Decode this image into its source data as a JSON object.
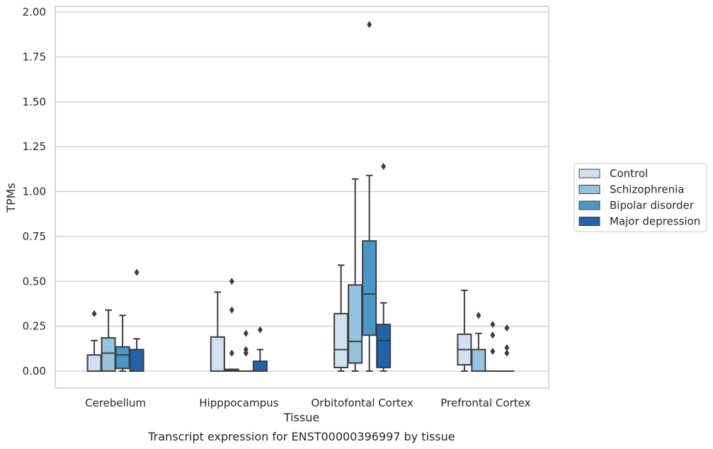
{
  "chart_data": {
    "type": "box",
    "xlabel": "Tissue",
    "ylabel": "TPMs",
    "caption": "Transcript expression for ENST00000396997 by tissue",
    "ylim": [
      -0.095,
      2.03
    ],
    "yticks": [
      "0.00",
      "0.25",
      "0.50",
      "0.75",
      "1.00",
      "1.25",
      "1.50",
      "1.75",
      "2.00"
    ],
    "grid": "horizontal",
    "legend_position": "right",
    "categories": [
      "Cerebellum",
      "Hipppocampus",
      "Orbitofontal Cortex",
      "Prefrontal Cortex"
    ],
    "series": [
      {
        "name": "Control",
        "color": "#d0e1f2",
        "boxes": [
          {
            "whisker_low": 0.0,
            "q1": 0.0,
            "median": 0.0,
            "q3": 0.09,
            "whisker_high": 0.17,
            "outliers": [
              0.32
            ]
          },
          {
            "whisker_low": 0.0,
            "q1": 0.0,
            "median": 0.0,
            "q3": 0.19,
            "whisker_high": 0.44,
            "outliers": []
          },
          {
            "whisker_low": 0.0,
            "q1": 0.02,
            "median": 0.12,
            "q3": 0.32,
            "whisker_high": 0.59,
            "outliers": []
          },
          {
            "whisker_low": 0.0,
            "q1": 0.035,
            "median": 0.12,
            "q3": 0.205,
            "whisker_high": 0.45,
            "outliers": []
          }
        ]
      },
      {
        "name": "Schizophrenia",
        "color": "#94c4df",
        "boxes": [
          {
            "whisker_low": 0.0,
            "q1": 0.0,
            "median": 0.1,
            "q3": 0.185,
            "whisker_high": 0.34,
            "outliers": []
          },
          {
            "whisker_low": 0.0,
            "q1": 0.0,
            "median": 0.005,
            "q3": 0.01,
            "whisker_high": 0.01,
            "outliers": [
              0.1,
              0.34,
              0.5
            ]
          },
          {
            "whisker_low": 0.0,
            "q1": 0.045,
            "median": 0.165,
            "q3": 0.48,
            "whisker_high": 1.07,
            "outliers": []
          },
          {
            "whisker_low": 0.0,
            "q1": 0.0,
            "median": 0.0,
            "q3": 0.12,
            "whisker_high": 0.21,
            "outliers": [
              0.31
            ]
          }
        ]
      },
      {
        "name": "Bipolar disorder",
        "color": "#4a98c9",
        "boxes": [
          {
            "whisker_low": 0.0,
            "q1": 0.015,
            "median": 0.09,
            "q3": 0.135,
            "whisker_high": 0.31,
            "outliers": []
          },
          {
            "whisker_low": 0.0,
            "q1": 0.0,
            "median": 0.0,
            "q3": 0.0,
            "whisker_high": 0.0,
            "outliers": [
              0.1,
              0.12,
              0.21
            ]
          },
          {
            "whisker_low": 0.0,
            "q1": 0.2,
            "median": 0.43,
            "q3": 0.725,
            "whisker_high": 1.09,
            "outliers": [
              1.93
            ]
          },
          {
            "whisker_low": 0.0,
            "q1": 0.0,
            "median": 0.0,
            "q3": 0.0,
            "whisker_high": 0.0,
            "outliers": [
              0.11,
              0.2,
              0.26
            ]
          }
        ]
      },
      {
        "name": "Major depression",
        "color": "#2163aa",
        "boxes": [
          {
            "whisker_low": 0.0,
            "q1": 0.0,
            "median": 0.0,
            "q3": 0.12,
            "whisker_high": 0.18,
            "outliers": [
              0.55
            ]
          },
          {
            "whisker_low": 0.0,
            "q1": 0.0,
            "median": 0.0,
            "q3": 0.055,
            "whisker_high": 0.12,
            "outliers": [
              0.23
            ]
          },
          {
            "whisker_low": 0.0,
            "q1": 0.02,
            "median": 0.17,
            "q3": 0.26,
            "whisker_high": 0.38,
            "outliers": [
              1.14
            ]
          },
          {
            "whisker_low": 0.0,
            "q1": 0.0,
            "median": 0.0,
            "q3": 0.0,
            "whisker_high": 0.0,
            "outliers": [
              0.1,
              0.13,
              0.24
            ]
          }
        ]
      }
    ]
  }
}
